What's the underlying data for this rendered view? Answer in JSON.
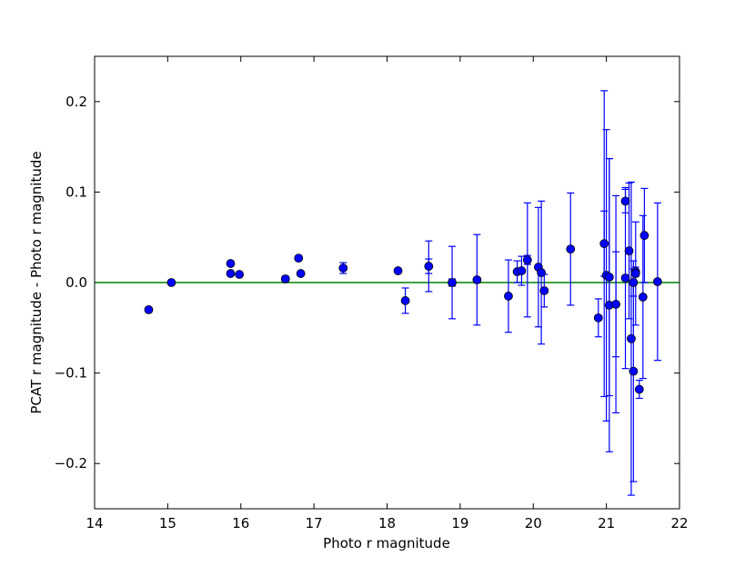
{
  "chart_data": {
    "type": "scatter",
    "title": "",
    "xlabel": "Photo r magnitude",
    "ylabel": "PCAT r magnitude - Photo r magnitude",
    "xlim": [
      14,
      22
    ],
    "ylim": [
      -0.25,
      0.25
    ],
    "x_ticks": [
      14,
      15,
      16,
      17,
      18,
      19,
      20,
      21,
      22
    ],
    "x_tick_labels": [
      "14",
      "15",
      "16",
      "17",
      "18",
      "19",
      "20",
      "21",
      "22"
    ],
    "y_ticks": [
      -0.2,
      -0.1,
      0.0,
      0.1,
      0.2
    ],
    "y_tick_labels": [
      "−0.2",
      "−0.1",
      "0.0",
      "0.1",
      "0.2"
    ],
    "grid": false,
    "reference_line": {
      "y": 0.0,
      "color": "#008000"
    },
    "marker_color": "#0000ff",
    "errorbar_color": "#0000ff",
    "points": [
      {
        "x": 14.74,
        "y": -0.03,
        "err": 0.0
      },
      {
        "x": 15.05,
        "y": 0.0,
        "err": 0.0
      },
      {
        "x": 15.86,
        "y": 0.021,
        "err": 0.0
      },
      {
        "x": 15.86,
        "y": 0.01,
        "err": 0.0
      },
      {
        "x": 15.98,
        "y": 0.009,
        "err": 0.0
      },
      {
        "x": 16.61,
        "y": 0.004,
        "err": 0.003
      },
      {
        "x": 16.79,
        "y": 0.027,
        "err": 0.0
      },
      {
        "x": 16.82,
        "y": 0.01,
        "err": 0.0
      },
      {
        "x": 17.4,
        "y": 0.016,
        "err": 0.006
      },
      {
        "x": 18.15,
        "y": 0.013,
        "err": 0.0
      },
      {
        "x": 18.25,
        "y": -0.02,
        "err": 0.014
      },
      {
        "x": 18.57,
        "y": 0.018,
        "err": 0.008
      },
      {
        "x": 18.57,
        "y": 0.018,
        "err": 0.028
      },
      {
        "x": 18.89,
        "y": 0.0,
        "err": 0.004
      },
      {
        "x": 18.89,
        "y": 0.0,
        "err": 0.04
      },
      {
        "x": 19.23,
        "y": 0.003,
        "err": 0.05
      },
      {
        "x": 19.66,
        "y": -0.015,
        "err": 0.04
      },
      {
        "x": 19.78,
        "y": 0.012,
        "err": 0.012
      },
      {
        "x": 19.84,
        "y": 0.013,
        "err": 0.016
      },
      {
        "x": 19.92,
        "y": 0.025,
        "err": 0.005
      },
      {
        "x": 19.92,
        "y": 0.025,
        "err": 0.063
      },
      {
        "x": 20.07,
        "y": 0.017,
        "err": 0.066
      },
      {
        "x": 20.11,
        "y": 0.011,
        "err": 0.079
      },
      {
        "x": 20.15,
        "y": -0.009,
        "err": 0.018
      },
      {
        "x": 20.51,
        "y": 0.037,
        "err": 0.062
      },
      {
        "x": 20.89,
        "y": -0.039,
        "err": 0.021
      },
      {
        "x": 20.97,
        "y": 0.043,
        "err": 0.036
      },
      {
        "x": 20.97,
        "y": 0.043,
        "err": 0.169
      },
      {
        "x": 21.0,
        "y": 0.008,
        "err": 0.161
      },
      {
        "x": 21.04,
        "y": -0.025,
        "err": 0.162
      },
      {
        "x": 21.04,
        "y": 0.006,
        "err": 0.131
      },
      {
        "x": 21.13,
        "y": -0.024,
        "err": 0.058
      },
      {
        "x": 21.13,
        "y": -0.024,
        "err": 0.12
      },
      {
        "x": 21.26,
        "y": 0.09,
        "err": 0.013
      },
      {
        "x": 21.26,
        "y": 0.005,
        "err": 0.1
      },
      {
        "x": 21.31,
        "y": 0.035,
        "err": 0.075
      },
      {
        "x": 21.34,
        "y": -0.062,
        "err": 0.173
      },
      {
        "x": 21.37,
        "y": -0.098,
        "err": 0.122
      },
      {
        "x": 21.37,
        "y": 0.0,
        "err": 0.015
      },
      {
        "x": 21.4,
        "y": 0.012,
        "err": 0.005
      },
      {
        "x": 21.4,
        "y": 0.01,
        "err": 0.057
      },
      {
        "x": 21.45,
        "y": -0.118,
        "err": 0.01
      },
      {
        "x": 21.5,
        "y": -0.016,
        "err": 0.09
      },
      {
        "x": 21.52,
        "y": 0.052,
        "err": 0.052
      },
      {
        "x": 21.7,
        "y": 0.001,
        "err": 0.087
      }
    ]
  }
}
